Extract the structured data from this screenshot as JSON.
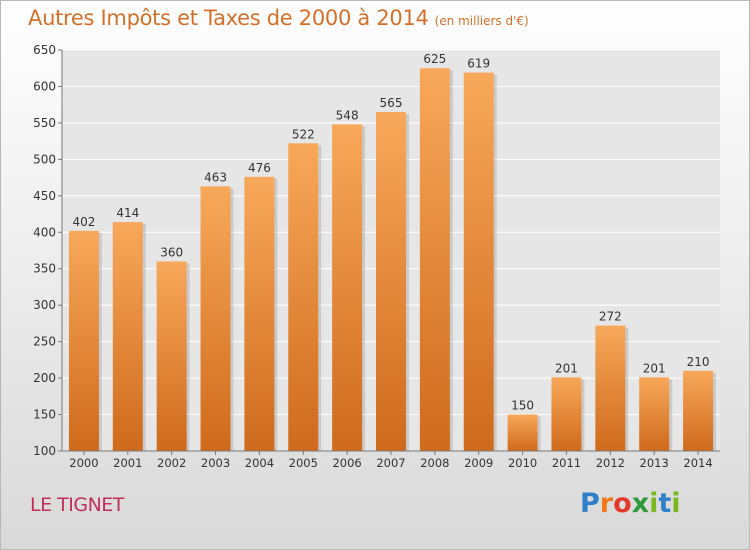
{
  "header": {
    "title": "Autres Impôts et Taxes de 2000 à 2014",
    "subtitle": "(en milliers d'€)"
  },
  "footer": {
    "place": "LE TIGNET",
    "logo": "Proxiti"
  },
  "colors": {
    "bar_light": "#f8a85a",
    "bar_dark": "#cf6a1c",
    "title": "#d4702a",
    "place": "#c0305a"
  },
  "chart_data": {
    "type": "bar",
    "title": "Autres Impôts et Taxes de 2000 à 2014",
    "subtitle": "(en milliers d'€)",
    "xlabel": "",
    "ylabel": "",
    "categories": [
      "2000",
      "2001",
      "2002",
      "2003",
      "2004",
      "2005",
      "2006",
      "2007",
      "2008",
      "2009",
      "2010",
      "2011",
      "2012",
      "2013",
      "2014"
    ],
    "values": [
      402,
      414,
      360,
      463,
      476,
      522,
      548,
      565,
      625,
      619,
      150,
      201,
      272,
      201,
      210
    ],
    "ylim": [
      100,
      650
    ],
    "yticks": [
      100,
      150,
      200,
      250,
      300,
      350,
      400,
      450,
      500,
      550,
      600,
      650
    ],
    "grid": true,
    "legend": "none"
  }
}
